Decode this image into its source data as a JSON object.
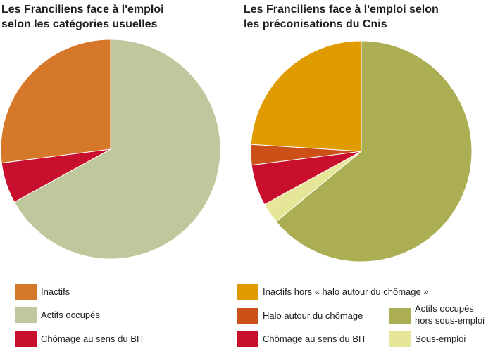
{
  "chart_data": [
    {
      "type": "pie",
      "title": [
        "Les Franciliens face à l'emploi",
        "selon les catégories usuelles"
      ],
      "slices": [
        {
          "name": "Actifs occupés",
          "value": 67,
          "color": "#bec89c"
        },
        {
          "name": "Chômage au sens du BIT",
          "value": 6,
          "color": "#c8102e"
        },
        {
          "name": "Inactifs",
          "value": 27,
          "color": "#d5782a"
        }
      ],
      "start_angle_deg": 0,
      "direction": "clockwise",
      "legend": [
        {
          "label": "Inactifs",
          "color": "#d5782a"
        },
        {
          "label": "Actifs occupés",
          "color": "#bec89c"
        },
        {
          "label": "Chômage au sens du BIT",
          "color": "#c8102e"
        }
      ]
    },
    {
      "type": "pie",
      "title": [
        "Les Franciliens face à l'emploi selon",
        "les préconisations du Cnis"
      ],
      "slices": [
        {
          "name": "Actifs occupés hors sous-emploi",
          "value": 64,
          "color": "#abae52"
        },
        {
          "name": "Sous-emploi",
          "value": 3,
          "color": "#e6e699"
        },
        {
          "name": "Chômage au sens du BIT",
          "value": 6,
          "color": "#c8102e"
        },
        {
          "name": "Halo autour du chômage",
          "value": 3,
          "color": "#cc5118"
        },
        {
          "name": "Inactifs hors « halo autour du chômage »",
          "value": 24,
          "color": "#e09b00"
        }
      ],
      "start_angle_deg": 0,
      "direction": "clockwise",
      "legend": [
        {
          "label": "Inactifs hors « halo autour du chômage »",
          "color": "#e09b00"
        },
        {
          "label": "Halo autour du chômage",
          "color": "#cc5118"
        },
        {
          "label": "Chômage au sens du BIT",
          "color": "#c8102e"
        },
        {
          "label": [
            "Actifs occupés",
            "hors sous-emploi"
          ],
          "color": "#abae52"
        },
        {
          "label": "Sous-emploi",
          "color": "#e6e699"
        }
      ]
    }
  ]
}
